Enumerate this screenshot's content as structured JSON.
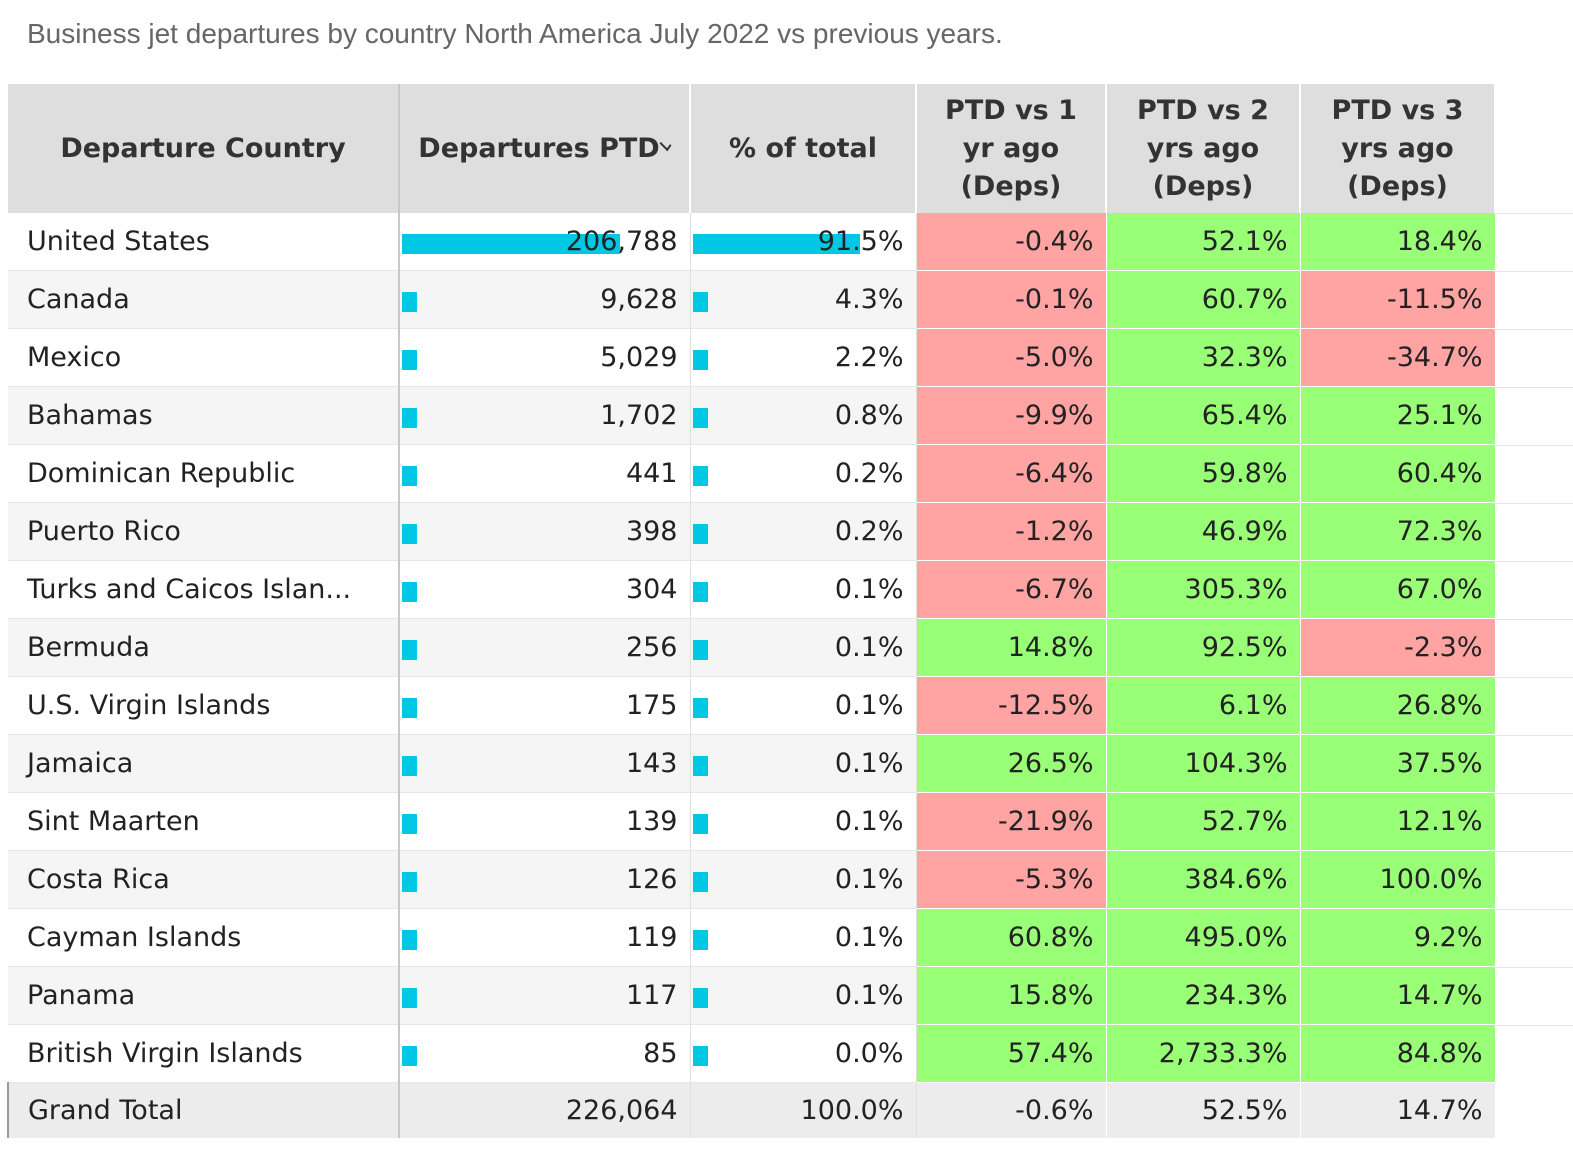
{
  "title": "Business jet departures by country North America July 2022 vs previous years.",
  "colors": {
    "bar": "#00c8e4",
    "positive": "#99ff77",
    "negative": "#ffa3a3",
    "header_bg": "#dedede"
  },
  "headers": {
    "country": "Departure Country",
    "departures": "Departures PTD",
    "pct_total": "% of total",
    "vs1": "PTD vs 1 yr ago (Deps)",
    "vs2": "PTD vs 2 yrs ago (Deps)",
    "vs3": "PTD vs 3 yrs ago (Deps)"
  },
  "chart_data": {
    "type": "table",
    "columns": [
      "Departure Country",
      "Departures PTD",
      "% of total",
      "PTD vs 1 yr ago (Deps)",
      "PTD vs 2 yrs ago (Deps)",
      "PTD vs 3 yrs ago (Deps)"
    ],
    "sorted_by": "Departures PTD",
    "rows": [
      {
        "country": "United States",
        "departures": "206,788",
        "departures_value": 206788,
        "pct_total": "91.5%",
        "pct_value": 91.5,
        "vs1": "-0.4%",
        "vs2": "52.1%",
        "vs3": "18.4%"
      },
      {
        "country": "Canada",
        "departures": "9,628",
        "departures_value": 9628,
        "pct_total": "4.3%",
        "pct_value": 4.3,
        "vs1": "-0.1%",
        "vs2": "60.7%",
        "vs3": "-11.5%"
      },
      {
        "country": "Mexico",
        "departures": "5,029",
        "departures_value": 5029,
        "pct_total": "2.2%",
        "pct_value": 2.2,
        "vs1": "-5.0%",
        "vs2": "32.3%",
        "vs3": "-34.7%"
      },
      {
        "country": "Bahamas",
        "departures": "1,702",
        "departures_value": 1702,
        "pct_total": "0.8%",
        "pct_value": 0.8,
        "vs1": "-9.9%",
        "vs2": "65.4%",
        "vs3": "25.1%"
      },
      {
        "country": "Dominican Republic",
        "departures": "441",
        "departures_value": 441,
        "pct_total": "0.2%",
        "pct_value": 0.2,
        "vs1": "-6.4%",
        "vs2": "59.8%",
        "vs3": "60.4%"
      },
      {
        "country": "Puerto Rico",
        "departures": "398",
        "departures_value": 398,
        "pct_total": "0.2%",
        "pct_value": 0.2,
        "vs1": "-1.2%",
        "vs2": "46.9%",
        "vs3": "72.3%"
      },
      {
        "country": "Turks and Caicos Islan...",
        "departures": "304",
        "departures_value": 304,
        "pct_total": "0.1%",
        "pct_value": 0.1,
        "vs1": "-6.7%",
        "vs2": "305.3%",
        "vs3": "67.0%"
      },
      {
        "country": "Bermuda",
        "departures": "256",
        "departures_value": 256,
        "pct_total": "0.1%",
        "pct_value": 0.1,
        "vs1": "14.8%",
        "vs2": "92.5%",
        "vs3": "-2.3%"
      },
      {
        "country": "U.S. Virgin Islands",
        "departures": "175",
        "departures_value": 175,
        "pct_total": "0.1%",
        "pct_value": 0.1,
        "vs1": "-12.5%",
        "vs2": "6.1%",
        "vs3": "26.8%"
      },
      {
        "country": "Jamaica",
        "departures": "143",
        "departures_value": 143,
        "pct_total": "0.1%",
        "pct_value": 0.1,
        "vs1": "26.5%",
        "vs2": "104.3%",
        "vs3": "37.5%"
      },
      {
        "country": "Sint Maarten",
        "departures": "139",
        "departures_value": 139,
        "pct_total": "0.1%",
        "pct_value": 0.1,
        "vs1": "-21.9%",
        "vs2": "52.7%",
        "vs3": "12.1%"
      },
      {
        "country": "Costa Rica",
        "departures": "126",
        "departures_value": 126,
        "pct_total": "0.1%",
        "pct_value": 0.1,
        "vs1": "-5.3%",
        "vs2": "384.6%",
        "vs3": "100.0%"
      },
      {
        "country": "Cayman Islands",
        "departures": "119",
        "departures_value": 119,
        "pct_total": "0.1%",
        "pct_value": 0.1,
        "vs1": "60.8%",
        "vs2": "495.0%",
        "vs3": "9.2%"
      },
      {
        "country": "Panama",
        "departures": "117",
        "departures_value": 117,
        "pct_total": "0.1%",
        "pct_value": 0.1,
        "vs1": "15.8%",
        "vs2": "234.3%",
        "vs3": "14.7%"
      },
      {
        "country": "British Virgin Islands",
        "departures": "85",
        "departures_value": 85,
        "pct_total": "0.0%",
        "pct_value": 0.0,
        "vs1": "57.4%",
        "vs2": "2,733.3%",
        "vs3": "84.8%"
      }
    ],
    "total": {
      "country": "Grand Total",
      "departures": "226,064",
      "pct_total": "100.0%",
      "vs1": "-0.6%",
      "vs2": "52.5%",
      "vs3": "14.7%"
    }
  }
}
